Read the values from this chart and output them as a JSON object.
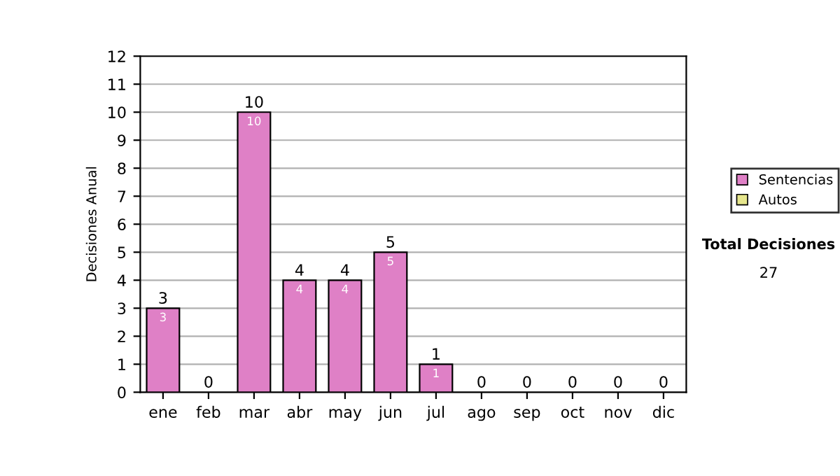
{
  "chart_data": {
    "type": "bar",
    "stacked": true,
    "ylabel": "Decisiones Anual",
    "categories": [
      "ene",
      "feb",
      "mar",
      "abr",
      "may",
      "jun",
      "jul",
      "ago",
      "sep",
      "oct",
      "nov",
      "dic"
    ],
    "series": [
      {
        "name": "Sentencias",
        "color": "#df80c6",
        "values": [
          3,
          0,
          10,
          4,
          4,
          5,
          1,
          0,
          0,
          0,
          0,
          0
        ],
        "value_labels": [
          "3",
          null,
          "10",
          "4",
          "4",
          "5",
          "1",
          null,
          null,
          null,
          null,
          null
        ]
      },
      {
        "name": "Autos",
        "color": "#e6e68c",
        "values": [
          0,
          0,
          0,
          0,
          0,
          0,
          0,
          0,
          0,
          0,
          0,
          0
        ]
      }
    ],
    "totals": [
      "3",
      "0",
      "10",
      "4",
      "4",
      "5",
      "1",
      "0",
      "0",
      "0",
      "0",
      "0"
    ],
    "ylim": [
      0,
      12
    ],
    "yticks": [
      0,
      1,
      2,
      3,
      4,
      5,
      6,
      7,
      8,
      9,
      10,
      11,
      12
    ],
    "grid": "y",
    "legend": "right",
    "annotations": [
      "Total Decisiones",
      "27"
    ]
  }
}
